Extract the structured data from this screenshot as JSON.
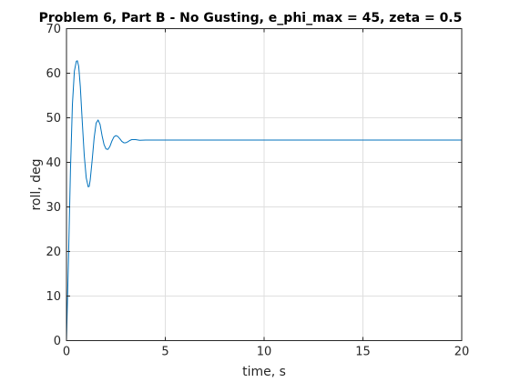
{
  "chart_data": {
    "type": "line",
    "title": "Problem 6, Part B - No Gusting, e_phi_max = 45, zeta = 0.5",
    "xlabel": "time, s",
    "ylabel": "roll, deg",
    "xlim": [
      0,
      20
    ],
    "ylim": [
      0,
      70
    ],
    "xticks": [
      0,
      5,
      10,
      15,
      20
    ],
    "yticks": [
      0,
      10,
      20,
      30,
      40,
      50,
      60,
      70
    ],
    "xtick_labels": [
      "0",
      "5",
      "10",
      "15",
      "20"
    ],
    "ytick_labels": [
      "0",
      "10",
      "20",
      "30",
      "40",
      "50",
      "60",
      "70"
    ],
    "grid": true,
    "legend": null,
    "series": [
      {
        "color": "#0072bd",
        "x": [
          0,
          0.1,
          0.2,
          0.3,
          0.4,
          0.5,
          0.55,
          0.62,
          0.7,
          0.8,
          0.9,
          1.0,
          1.1,
          1.15,
          1.2,
          1.3,
          1.4,
          1.5,
          1.6,
          1.7,
          1.8,
          1.9,
          2.0,
          2.1,
          2.2,
          2.3,
          2.4,
          2.5,
          2.6,
          2.7,
          2.8,
          2.9,
          3.0,
          3.1,
          3.2,
          3.3,
          3.5,
          3.7,
          4.0,
          4.5,
          5,
          6,
          8,
          10,
          12,
          14,
          16,
          18,
          20
        ],
        "y": [
          0,
          18,
          38,
          53,
          60.5,
          62.7,
          62.8,
          61.5,
          57,
          49,
          41.5,
          36.5,
          34.5,
          34.6,
          36,
          40.5,
          45.5,
          48.8,
          49.5,
          48.5,
          46,
          44,
          43,
          42.9,
          43.6,
          44.8,
          45.7,
          46,
          45.8,
          45.3,
          44.7,
          44.4,
          44.4,
          44.6,
          44.9,
          45.1,
          45.1,
          44.95,
          45,
          45,
          45,
          45,
          45,
          45,
          45,
          45,
          45,
          45,
          45
        ]
      }
    ]
  }
}
